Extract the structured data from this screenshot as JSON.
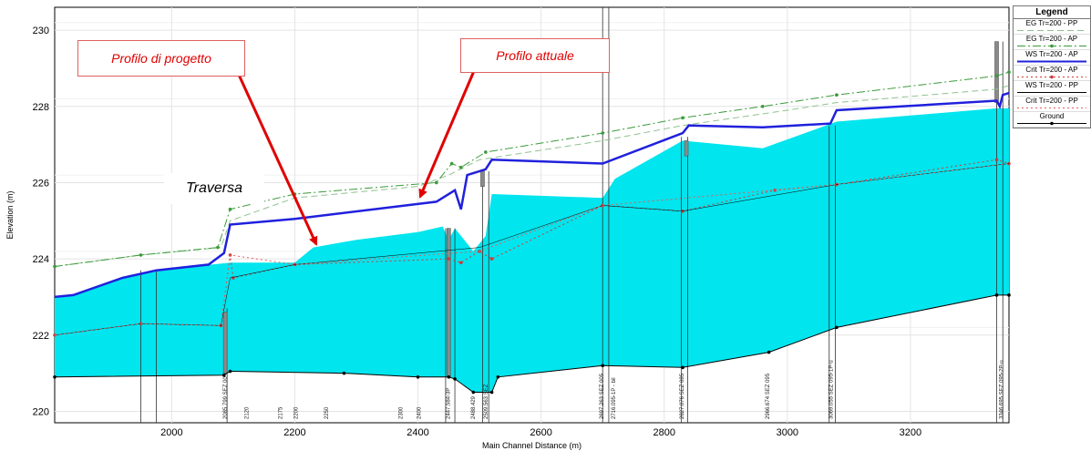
{
  "chart_data": {
    "type": "line",
    "title": "",
    "xlabel": "Main Channel Distance (m)",
    "ylabel": "Elevation (m)",
    "xlim": [
      1810,
      3360
    ],
    "ylim": [
      219.7,
      230.6
    ],
    "x_ticks": [
      2000,
      2200,
      2400,
      2600,
      2800,
      3000,
      3200
    ],
    "y_ticks": [
      220,
      222,
      224,
      226,
      228,
      230
    ],
    "grid": true,
    "legend_title": "Legend",
    "legend_position": "right",
    "series": [
      {
        "name": "EG  Tr=200 - PP",
        "color": "#8fc28f",
        "style": "dash",
        "points": [
          [
            1810,
            223.8
          ],
          [
            1950,
            224.1
          ],
          [
            2080,
            224.3
          ],
          [
            2095,
            225.0
          ],
          [
            2200,
            225.6
          ],
          [
            2400,
            225.9
          ],
          [
            2450,
            226.2
          ],
          [
            2500,
            226.6
          ],
          [
            2700,
            227.1
          ],
          [
            2830,
            227.5
          ],
          [
            3000,
            227.9
          ],
          [
            3080,
            228.1
          ],
          [
            3340,
            228.45
          ],
          [
            3360,
            228.55
          ]
        ]
      },
      {
        "name": "EG  Tr=200 - AP",
        "color": "#3a9a3a",
        "style": "dashdot",
        "marker": "dot",
        "points": [
          [
            1810,
            223.8
          ],
          [
            1950,
            224.1
          ],
          [
            2075,
            224.3
          ],
          [
            2095,
            225.3
          ],
          [
            2200,
            225.7
          ],
          [
            2430,
            226.0
          ],
          [
            2455,
            226.5
          ],
          [
            2470,
            226.4
          ],
          [
            2510,
            226.8
          ],
          [
            2700,
            227.3
          ],
          [
            2830,
            227.7
          ],
          [
            2960,
            228.0
          ],
          [
            3080,
            228.3
          ],
          [
            3340,
            228.8
          ],
          [
            3360,
            228.9
          ]
        ]
      },
      {
        "name": "WS  Tr=200 - AP",
        "color": "#2020dd",
        "style": "solid",
        "width": 2.5,
        "points": [
          [
            1810,
            223.0
          ],
          [
            1840,
            223.05
          ],
          [
            1920,
            223.5
          ],
          [
            1975,
            223.7
          ],
          [
            2060,
            223.85
          ],
          [
            2085,
            224.15
          ],
          [
            2095,
            224.9
          ],
          [
            2200,
            225.05
          ],
          [
            2430,
            225.5
          ],
          [
            2460,
            225.8
          ],
          [
            2470,
            225.3
          ],
          [
            2480,
            226.2
          ],
          [
            2500,
            226.3
          ],
          [
            2510,
            226.35
          ],
          [
            2520,
            226.6
          ],
          [
            2700,
            226.5
          ],
          [
            2830,
            227.3
          ],
          [
            2840,
            227.5
          ],
          [
            2960,
            227.45
          ],
          [
            3070,
            227.55
          ],
          [
            3080,
            227.9
          ],
          [
            3340,
            228.15
          ],
          [
            3345,
            228.0
          ],
          [
            3350,
            228.3
          ],
          [
            3360,
            228.35
          ]
        ]
      },
      {
        "name": "Crit  Tr=200 - AP",
        "color": "#d03a3a",
        "style": "dot",
        "marker": "dot",
        "points": [
          [
            1810,
            222.0
          ],
          [
            1950,
            222.3
          ],
          [
            2080,
            222.25
          ],
          [
            2095,
            224.1
          ],
          [
            2100,
            223.5
          ],
          [
            2200,
            223.85
          ],
          [
            2450,
            224.0
          ],
          [
            2470,
            223.9
          ],
          [
            2500,
            224.2
          ],
          [
            2520,
            224.0
          ],
          [
            2700,
            225.4
          ],
          [
            2830,
            225.25
          ],
          [
            2980,
            225.8
          ],
          [
            3080,
            225.95
          ],
          [
            3340,
            226.6
          ],
          [
            3360,
            226.5
          ]
        ]
      },
      {
        "name": "WS  Tr=200 - PP",
        "color": "#000000",
        "style": "thin",
        "points": [
          [
            1810,
            222.0
          ],
          [
            1950,
            222.3
          ],
          [
            2080,
            222.25
          ],
          [
            2095,
            223.5
          ],
          [
            2200,
            223.85
          ],
          [
            2500,
            224.3
          ],
          [
            2700,
            225.4
          ],
          [
            2830,
            225.25
          ],
          [
            3080,
            225.95
          ],
          [
            3360,
            226.5
          ]
        ]
      },
      {
        "name": "Crit  Tr=200 - PP",
        "color": "#e06060",
        "style": "dot",
        "points": [
          [
            1810,
            222.0
          ],
          [
            1950,
            222.3
          ],
          [
            2080,
            222.25
          ],
          [
            2095,
            224.1
          ],
          [
            2200,
            223.85
          ],
          [
            2500,
            224.2
          ],
          [
            2700,
            225.4
          ],
          [
            3080,
            225.95
          ],
          [
            3360,
            226.5
          ]
        ]
      },
      {
        "name": "Ground",
        "color": "#000000",
        "style": "solid",
        "marker": "dot",
        "points": [
          [
            1810,
            220.9
          ],
          [
            2085,
            220.95
          ],
          [
            2095,
            221.05
          ],
          [
            2280,
            221.0
          ],
          [
            2400,
            220.9
          ],
          [
            2450,
            220.9
          ],
          [
            2460,
            220.85
          ],
          [
            2490,
            220.5
          ],
          [
            2520,
            220.5
          ],
          [
            2530,
            220.9
          ],
          [
            2700,
            221.2
          ],
          [
            2830,
            221.15
          ],
          [
            2970,
            221.55
          ],
          [
            3080,
            222.2
          ],
          [
            3340,
            223.05
          ],
          [
            3360,
            223.05
          ]
        ]
      }
    ],
    "water_surface_pp": [
      [
        1810,
        223.0
      ],
      [
        1840,
        223.05
      ],
      [
        1920,
        223.5
      ],
      [
        1975,
        223.7
      ],
      [
        2095,
        223.9
      ],
      [
        2200,
        223.9
      ],
      [
        2230,
        224.3
      ],
      [
        2300,
        224.5
      ],
      [
        2400,
        224.7
      ],
      [
        2440,
        224.85
      ],
      [
        2450,
        224.5
      ],
      [
        2460,
        224.8
      ],
      [
        2490,
        224.2
      ],
      [
        2510,
        224.6
      ],
      [
        2520,
        225.7
      ],
      [
        2700,
        225.6
      ],
      [
        2720,
        226.1
      ],
      [
        2830,
        227.1
      ],
      [
        2960,
        226.9
      ],
      [
        3080,
        227.6
      ],
      [
        3340,
        227.95
      ],
      [
        3360,
        227.95
      ]
    ],
    "cross_sections": [
      {
        "x": 1950,
        "lo": 219.7,
        "hi": 223.7
      },
      {
        "x": 1975,
        "lo": 219.7,
        "hi": 223.7
      },
      {
        "x": 2090,
        "lo": 219.7,
        "hi": 222.7
      },
      {
        "x": 2445,
        "lo": 219.7,
        "hi": 224.8
      },
      {
        "x": 2460,
        "lo": 219.7,
        "hi": 224.8
      },
      {
        "x": 2505,
        "lo": 219.7,
        "hi": 226.3
      },
      {
        "x": 2515,
        "lo": 219.7,
        "hi": 226.3
      },
      {
        "x": 2700,
        "lo": 219.7,
        "hi": 230.6
      },
      {
        "x": 2710,
        "lo": 219.7,
        "hi": 230.6
      },
      {
        "x": 2828,
        "lo": 219.7,
        "hi": 227.2
      },
      {
        "x": 2838,
        "lo": 219.7,
        "hi": 227.2
      },
      {
        "x": 3068,
        "lo": 219.7,
        "hi": 227.5
      },
      {
        "x": 3078,
        "lo": 219.7,
        "hi": 227.5
      },
      {
        "x": 3340,
        "lo": 219.7,
        "hi": 229.7
      },
      {
        "x": 3350,
        "lo": 219.7,
        "hi": 229.7
      }
    ],
    "structures": [
      {
        "x": 2087,
        "lo": 221.0,
        "hi": 222.6
      },
      {
        "x": 2450,
        "lo": 220.9,
        "hi": 224.8
      },
      {
        "x": 2505,
        "lo": 225.9,
        "hi": 226.3
      },
      {
        "x": 2836,
        "lo": 226.7,
        "hi": 227.1
      },
      {
        "x": 3340,
        "lo": 228.1,
        "hi": 229.7
      }
    ],
    "station_labels": [
      {
        "x": 2085,
        "text": "2085.799 SEZ 00"
      },
      {
        "x": 2120,
        "text": "2120"
      },
      {
        "x": 2175,
        "text": "2175"
      },
      {
        "x": 2200,
        "text": "2200"
      },
      {
        "x": 2250,
        "text": "2250"
      },
      {
        "x": 2370,
        "text": "2300"
      },
      {
        "x": 2400,
        "text": "2400"
      },
      {
        "x": 2447,
        "text": "2447.584-3P"
      },
      {
        "x": 2488,
        "text": "2488.429"
      },
      {
        "x": 2509,
        "text": "2509.563 SEZ"
      },
      {
        "x": 2697,
        "text": "2697.263 SEZ 005"
      },
      {
        "x": 2716,
        "text": "2716.095-1P - bil"
      },
      {
        "x": 2827,
        "text": "2827.076 SEZ 085"
      },
      {
        "x": 2966,
        "text": "2966.674 SEZ 095"
      },
      {
        "x": 3069,
        "text": "3069.055 SEZ 095-1P-u"
      },
      {
        "x": 3346,
        "text": "3346.695 SEZ 095-2P-u"
      }
    ]
  },
  "annotations": {
    "callout_project": "Profilo di progetto",
    "callout_current": "Profilo attuale",
    "weir_label": "Traversa"
  },
  "colors": {
    "water": "#00e5ee",
    "arrow": "#e00000",
    "grid": "#e4e4e4"
  }
}
